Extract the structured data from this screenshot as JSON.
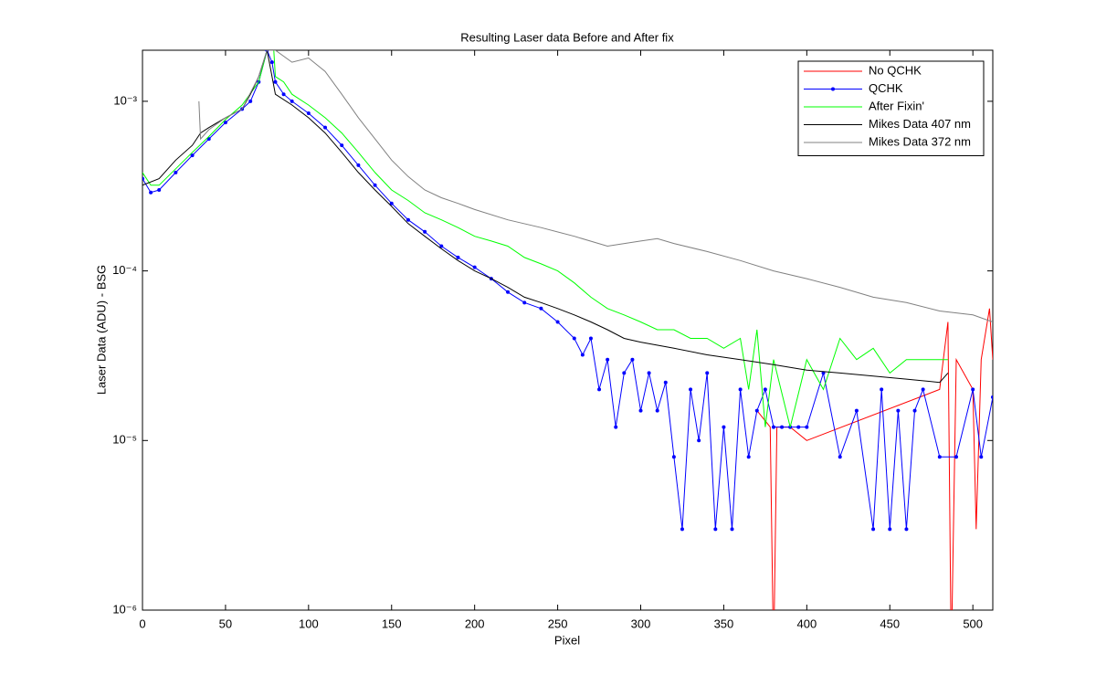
{
  "chart_data": {
    "type": "line",
    "title": "Resulting Laser data Before and After fix",
    "xlabel": "Pixel",
    "ylabel": "Laser Data (ADU) - BSG",
    "log_y": true,
    "legend": "upper right",
    "xlim": [
      0,
      512
    ],
    "xticks": [
      0,
      50,
      100,
      150,
      200,
      250,
      300,
      350,
      400,
      450,
      500
    ],
    "ylim": [
      1e-06,
      0.002
    ],
    "yticks": [
      {
        "value": 1e-06,
        "label": "10⁻⁶"
      },
      {
        "value": 1e-05,
        "label": "10⁻⁵"
      },
      {
        "value": 0.0001,
        "label": "10⁻⁴"
      },
      {
        "value": 0.001,
        "label": "10⁻³"
      }
    ],
    "series": [
      {
        "name": "No QCHK",
        "color": "#ff0000",
        "x": [
          370,
          378,
          380,
          382,
          390,
          400,
          480,
          485,
          487,
          490,
          500,
          502,
          505,
          510,
          512
        ],
        "values": [
          1.5e-05,
          1.2e-05,
          5e-07,
          1.2e-05,
          1.2e-05,
          1e-05,
          2e-05,
          5e-05,
          5e-07,
          3e-05,
          2e-05,
          3e-06,
          3e-05,
          6e-05,
          3e-05
        ]
      },
      {
        "name": "QCHK",
        "color": "#0000ff",
        "marker": true,
        "x": [
          0,
          5,
          10,
          20,
          30,
          40,
          50,
          60,
          65,
          70,
          75,
          78,
          80,
          85,
          90,
          100,
          110,
          120,
          130,
          140,
          150,
          160,
          170,
          180,
          190,
          200,
          210,
          220,
          230,
          240,
          250,
          260,
          265,
          270,
          275,
          280,
          285,
          290,
          295,
          300,
          305,
          310,
          315,
          320,
          325,
          330,
          335,
          340,
          345,
          350,
          355,
          360,
          365,
          370,
          375,
          380,
          385,
          390,
          395,
          400,
          410,
          420,
          430,
          440,
          445,
          450,
          455,
          460,
          465,
          470,
          480,
          490,
          500,
          505,
          512
        ],
        "values": [
          0.00035,
          0.00029,
          0.0003,
          0.00038,
          0.00048,
          0.0006,
          0.00075,
          0.0009,
          0.001,
          0.0013,
          0.002,
          0.0017,
          0.0013,
          0.0011,
          0.001,
          0.00085,
          0.0007,
          0.00055,
          0.00042,
          0.00032,
          0.00025,
          0.0002,
          0.00017,
          0.00014,
          0.00012,
          0.000105,
          9e-05,
          7.5e-05,
          6.5e-05,
          6e-05,
          5e-05,
          4e-05,
          3.2e-05,
          4e-05,
          2e-05,
          3e-05,
          1.2e-05,
          2.5e-05,
          3e-05,
          1.5e-05,
          2.5e-05,
          1.5e-05,
          2.2e-05,
          8e-06,
          3e-06,
          2e-05,
          1e-05,
          2.5e-05,
          3e-06,
          1.2e-05,
          3e-06,
          2e-05,
          8e-06,
          1.5e-05,
          2e-05,
          1.2e-05,
          1.2e-05,
          1.2e-05,
          1.2e-05,
          1.2e-05,
          2.5e-05,
          8e-06,
          1.5e-05,
          3e-06,
          2e-05,
          3e-06,
          1.5e-05,
          3e-06,
          1.5e-05,
          2e-05,
          8e-06,
          8e-06,
          2e-05,
          8e-06,
          1.8e-05
        ]
      },
      {
        "name": "After Fixin'",
        "color": "#00ff00",
        "x": [
          0,
          5,
          10,
          20,
          30,
          40,
          50,
          60,
          70,
          75,
          78,
          80,
          85,
          90,
          100,
          110,
          120,
          130,
          140,
          150,
          160,
          170,
          180,
          190,
          200,
          210,
          220,
          230,
          240,
          250,
          260,
          270,
          280,
          290,
          300,
          310,
          320,
          330,
          340,
          350,
          360,
          365,
          370,
          375,
          380,
          390,
          400,
          410,
          420,
          430,
          440,
          450,
          460,
          470,
          480,
          485
        ],
        "values": [
          0.00038,
          0.00032,
          0.00032,
          0.0004,
          0.0005,
          0.00062,
          0.00078,
          0.00095,
          0.0013,
          0.002,
          0.003,
          0.0014,
          0.0013,
          0.0011,
          0.00095,
          0.0008,
          0.00065,
          0.0005,
          0.00038,
          0.0003,
          0.00026,
          0.00022,
          0.0002,
          0.00018,
          0.00016,
          0.00015,
          0.00014,
          0.00012,
          0.00011,
          0.0001,
          8.5e-05,
          7e-05,
          6e-05,
          5.5e-05,
          5e-05,
          4.5e-05,
          4.5e-05,
          4e-05,
          4e-05,
          3.5e-05,
          4e-05,
          2e-05,
          4.5e-05,
          1.2e-05,
          3e-05,
          1.2e-05,
          3e-05,
          2e-05,
          4e-05,
          3e-05,
          3.5e-05,
          2.5e-05,
          3e-05,
          3e-05,
          3e-05,
          3e-05
        ]
      },
      {
        "name": "Mikes Data 407 nm",
        "color": "#000000",
        "x": [
          0,
          10,
          20,
          30,
          35,
          40,
          50,
          60,
          65,
          70,
          75,
          80,
          90,
          100,
          110,
          120,
          130,
          140,
          150,
          160,
          170,
          180,
          190,
          200,
          210,
          220,
          230,
          240,
          250,
          260,
          270,
          280,
          290,
          300,
          320,
          340,
          360,
          380,
          400,
          420,
          440,
          460,
          480,
          485
        ],
        "values": [
          0.00032,
          0.00035,
          0.00045,
          0.00055,
          0.00065,
          0.0007,
          0.0008,
          0.0009,
          0.0011,
          0.0014,
          0.002,
          0.0011,
          0.00095,
          0.0008,
          0.00065,
          0.0005,
          0.00038,
          0.0003,
          0.00024,
          0.00019,
          0.00016,
          0.000135,
          0.000115,
          0.0001,
          9e-05,
          8e-05,
          7e-05,
          6.5e-05,
          6e-05,
          5.5e-05,
          5e-05,
          4.5e-05,
          4e-05,
          3.8e-05,
          3.5e-05,
          3.2e-05,
          3e-05,
          2.8e-05,
          2.6e-05,
          2.5e-05,
          2.4e-05,
          2.3e-05,
          2.2e-05,
          2.5e-05
        ]
      },
      {
        "name": "Mikes Data 372 nm",
        "color": "#808080",
        "x": [
          34,
          35,
          40,
          50,
          60,
          70,
          75,
          80,
          90,
          100,
          110,
          120,
          130,
          140,
          150,
          160,
          170,
          180,
          190,
          200,
          220,
          240,
          260,
          280,
          300,
          310,
          320,
          340,
          360,
          380,
          400,
          420,
          440,
          460,
          480,
          500,
          512
        ],
        "values": [
          0.001,
          0.0006,
          0.00068,
          0.0008,
          0.0009,
          0.0014,
          0.002,
          0.002,
          0.0017,
          0.0018,
          0.0015,
          0.0011,
          0.0008,
          0.0006,
          0.00045,
          0.00036,
          0.0003,
          0.00027,
          0.00025,
          0.00023,
          0.0002,
          0.00018,
          0.00016,
          0.00014,
          0.00015,
          0.000155,
          0.000145,
          0.00013,
          0.000115,
          0.0001,
          9e-05,
          8e-05,
          7e-05,
          6.5e-05,
          5.8e-05,
          5.5e-05,
          5e-05
        ]
      }
    ]
  }
}
